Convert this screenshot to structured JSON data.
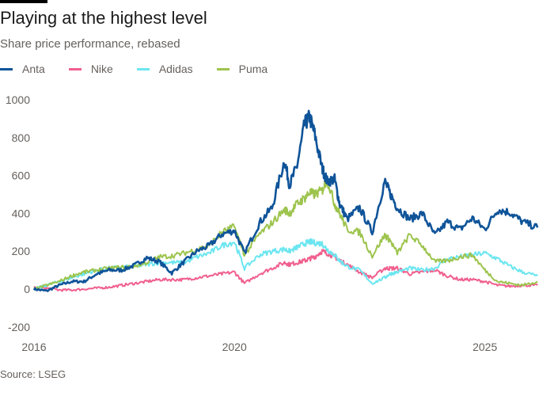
{
  "chart_data": {
    "type": "line",
    "title": "Playing at the highest level",
    "subtitle": "Share price performance, rebased",
    "source": "Source: LSEG",
    "xlabel": "",
    "ylabel": "",
    "xlim": [
      2016,
      2026.1
    ],
    "ylim": [
      -200,
      1000
    ],
    "grid": false,
    "legend": "top-left",
    "x_ticks": [
      2016,
      2020,
      2025
    ],
    "y_ticks": [
      1000,
      800,
      600,
      400,
      200,
      0,
      -200
    ],
    "x": [
      2016.0,
      2016.25,
      2016.5,
      2016.75,
      2017.0,
      2017.25,
      2017.5,
      2017.75,
      2018.0,
      2018.25,
      2018.5,
      2018.75,
      2019.0,
      2019.25,
      2019.5,
      2019.75,
      2020.0,
      2020.2,
      2020.5,
      2020.75,
      2021.0,
      2021.1,
      2021.25,
      2021.4,
      2021.5,
      2021.6,
      2021.75,
      2021.85,
      2022.0,
      2022.1,
      2022.25,
      2022.5,
      2022.75,
      2023.0,
      2023.1,
      2023.25,
      2023.5,
      2023.75,
      2024.0,
      2024.25,
      2024.5,
      2024.75,
      2025.0,
      2025.25,
      2025.5,
      2025.75,
      2026.05
    ],
    "series": [
      {
        "name": "Anta",
        "color": "#0f5499",
        "values": [
          0,
          -10,
          20,
          40,
          40,
          80,
          100,
          100,
          125,
          165,
          145,
          85,
          145,
          200,
          230,
          290,
          310,
          190,
          350,
          430,
          680,
          550,
          650,
          870,
          910,
          820,
          640,
          570,
          580,
          450,
          370,
          430,
          300,
          570,
          510,
          430,
          370,
          400,
          285,
          355,
          315,
          375,
          315,
          420,
          405,
          355,
          325
        ]
      },
      {
        "name": "Nike",
        "color": "#f05f8e",
        "values": [
          10,
          5,
          -5,
          -5,
          0,
          5,
          10,
          20,
          30,
          40,
          50,
          50,
          50,
          60,
          70,
          80,
          90,
          30,
          80,
          110,
          140,
          130,
          140,
          150,
          160,
          170,
          200,
          190,
          170,
          150,
          130,
          90,
          60,
          110,
          110,
          110,
          80,
          90,
          100,
          70,
          50,
          50,
          40,
          20,
          15,
          20,
          20
        ]
      },
      {
        "name": "Adidas",
        "color": "#6be6f0",
        "values": [
          0,
          20,
          40,
          60,
          80,
          100,
          110,
          115,
          120,
          130,
          140,
          140,
          140,
          170,
          190,
          230,
          250,
          110,
          180,
          200,
          210,
          200,
          220,
          240,
          250,
          245,
          240,
          210,
          180,
          150,
          120,
          100,
          30,
          60,
          80,
          90,
          110,
          100,
          110,
          160,
          170,
          180,
          190,
          160,
          120,
          90,
          70
        ]
      },
      {
        "name": "Puma",
        "color": "#9dc44d",
        "values": [
          0,
          20,
          40,
          70,
          90,
          100,
          110,
          115,
          120,
          140,
          170,
          175,
          190,
          210,
          230,
          300,
          330,
          180,
          290,
          350,
          420,
          400,
          450,
          480,
          510,
          500,
          520,
          580,
          450,
          400,
          315,
          300,
          175,
          285,
          260,
          190,
          285,
          230,
          145,
          150,
          170,
          180,
          100,
          40,
          30,
          20,
          40
        ]
      }
    ]
  }
}
